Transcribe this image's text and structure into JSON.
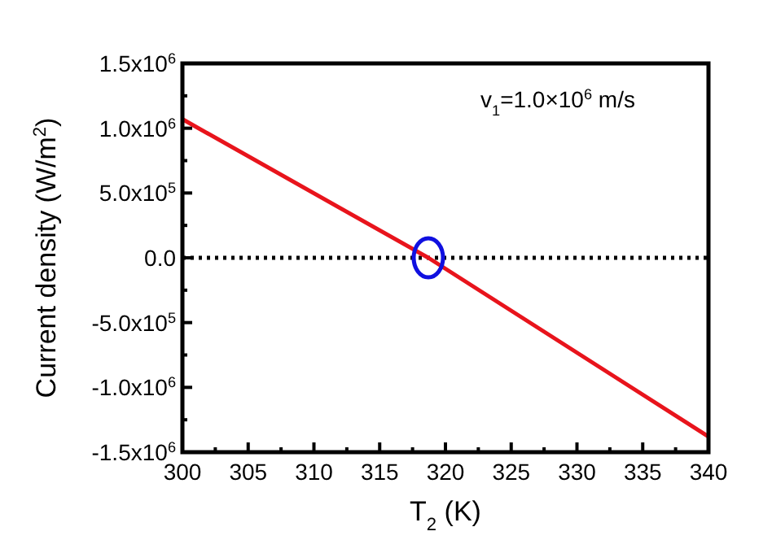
{
  "chart_data": {
    "type": "line",
    "xlabel": "T$_{2}$ (K)",
    "ylabel": "Current density (W/m$^{2}$)",
    "annotations": [
      "v$_{1}$=1.0×10$^{6}$ m/s"
    ],
    "series": [
      {
        "color": "#e8141c",
        "x": [
          300,
          318.7,
          340
        ],
        "values": [
          1070000,
          0,
          -1380000
        ]
      }
    ],
    "xlim": [
      300,
      340
    ],
    "xticks": [
      300,
      {
        "value": 302.5,
        "label": null
      },
      305,
      {
        "value": 307.5,
        "label": null
      },
      310,
      {
        "value": 312.5,
        "label": null
      },
      315,
      {
        "value": 317.5,
        "label": null
      },
      320,
      {
        "value": 322.5,
        "label": null
      },
      325,
      {
        "value": 327.5,
        "label": null
      },
      330,
      {
        "value": 332.5,
        "label": null
      },
      335,
      {
        "value": 337.5,
        "label": null
      },
      340
    ],
    "ylim": [
      -1500000,
      1500000
    ],
    "yticks": [
      {
        "value": -1500000,
        "label": "-1.5x10$^{6}$"
      },
      {
        "value": -1250000,
        "label": null
      },
      {
        "value": -1000000,
        "label": "-1.0x10$^{6}$"
      },
      {
        "value": -750000,
        "label": null
      },
      {
        "value": -500000,
        "label": "-5.0x10$^{5}$"
      },
      {
        "value": -250000,
        "label": null
      },
      {
        "value": 0,
        "label": "0.0"
      },
      {
        "value": 250000,
        "label": null
      },
      {
        "value": 500000,
        "label": "5.0x10$^{5}$"
      },
      {
        "value": 750000,
        "label": null
      },
      {
        "value": 1000000,
        "label": "1.0x10$^{6}$"
      },
      {
        "value": 1250000,
        "label": null
      },
      {
        "value": 1500000,
        "label": "1.5x10$^{6}$"
      }
    ],
    "ref_lines": [
      {
        "axis": "y",
        "value": 0,
        "color": "#000000",
        "line_style": "dotted"
      }
    ],
    "grid": false,
    "marker": "none",
    "line_style": "solid"
  }
}
